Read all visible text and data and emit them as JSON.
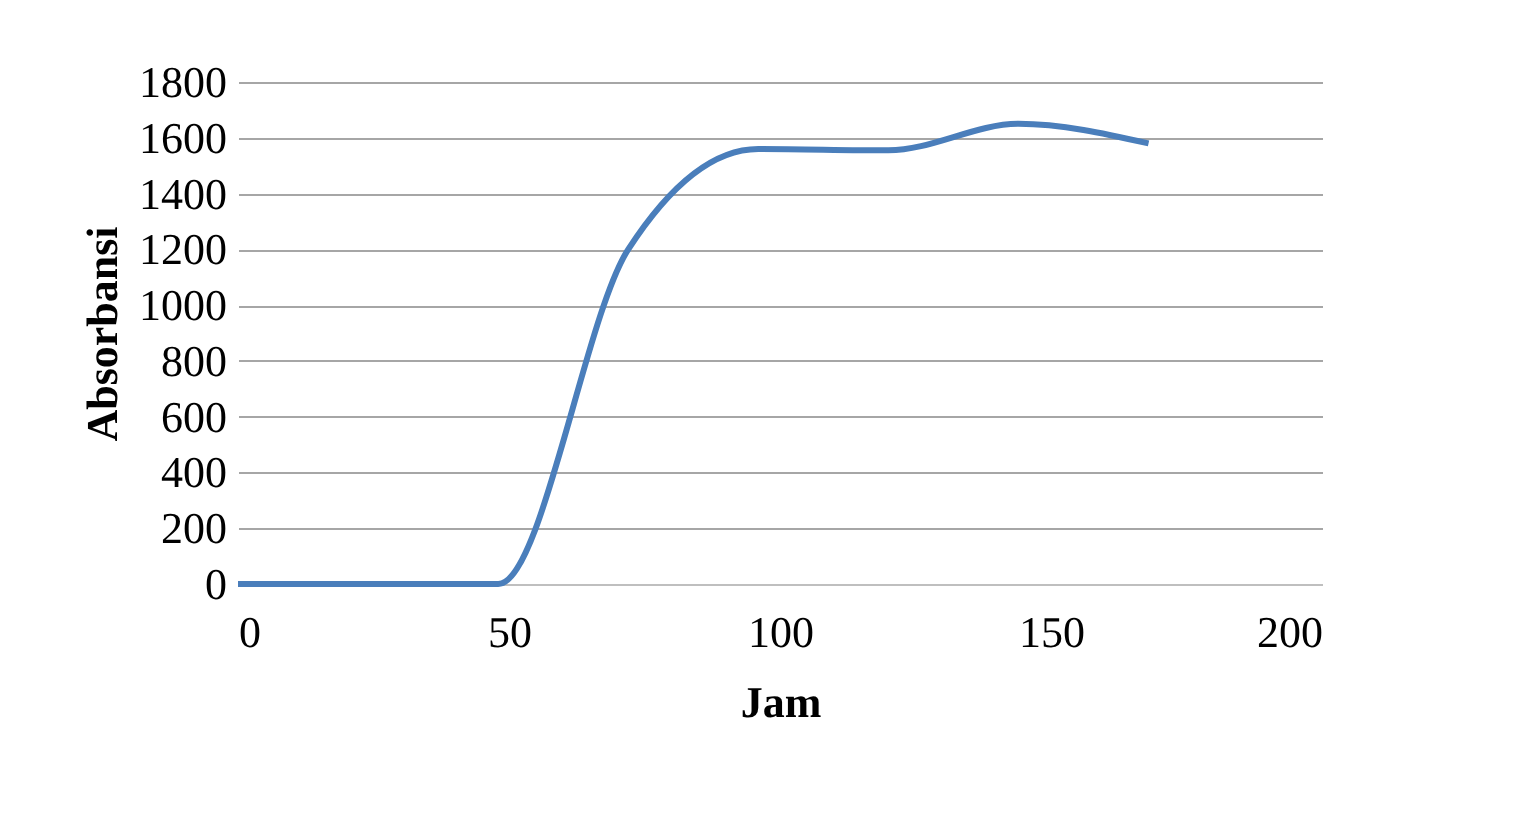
{
  "chart_data": {
    "type": "line",
    "xlabel": "Jam",
    "ylabel": "Absorbansi",
    "x": [
      0,
      24,
      48,
      72,
      96,
      120,
      144,
      168
    ],
    "series": [
      {
        "color": "#4a7ebb",
        "values": [
          0,
          0,
          0,
          1200,
          1560,
          1555,
          1650,
          1580
        ]
      }
    ],
    "xlim": [
      0,
      200
    ],
    "xticks": [
      0,
      50,
      100,
      150,
      200
    ],
    "ylim": [
      0,
      1800
    ],
    "yticks": [
      0,
      200,
      400,
      600,
      800,
      1000,
      1200,
      1400,
      1600,
      1800
    ],
    "grid": "y",
    "legend": false,
    "marker": "none",
    "line_style": "solid"
  }
}
